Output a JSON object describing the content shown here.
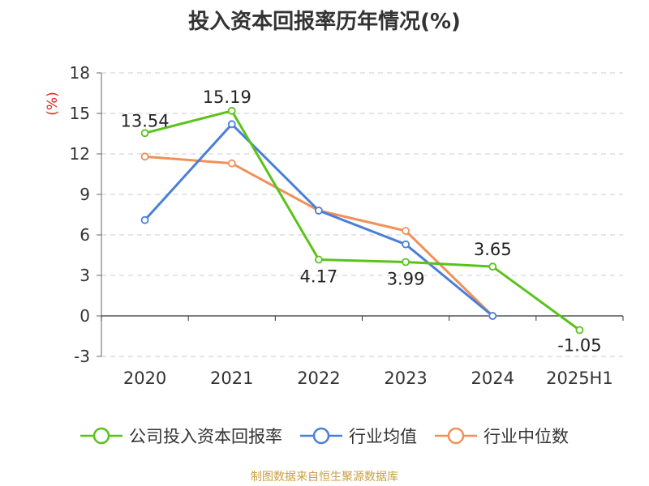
{
  "title": "投入资本回报率历年情况(%)",
  "source": "制图数据来自恒生聚源数据库",
  "chart_data": {
    "type": "line",
    "title": "投入资本回报率历年情况(%)",
    "categories": [
      "2020",
      "2021",
      "2022",
      "2023",
      "2024",
      "2025H1"
    ],
    "ylabel": "(%)",
    "ylim": [
      -3,
      18
    ],
    "yticks": [
      -3,
      0,
      3,
      6,
      9,
      12,
      15,
      18
    ],
    "grid": true,
    "legend_position": "bottom",
    "series": [
      {
        "name": "公司投入资本回报率",
        "color": "#5ac31a",
        "values": [
          13.54,
          15.19,
          4.17,
          3.99,
          3.65,
          -1.05
        ],
        "labels": [
          "13.54",
          "15.19",
          "4.17",
          "3.99",
          "3.65",
          "-1.05"
        ]
      },
      {
        "name": "行业均值",
        "color": "#4a7fd8",
        "values": [
          7.1,
          14.2,
          7.8,
          5.3,
          0.0,
          null
        ]
      },
      {
        "name": "行业中位数",
        "color": "#f0905a",
        "values": [
          11.8,
          11.3,
          7.8,
          6.3,
          0.0,
          null
        ]
      }
    ]
  }
}
